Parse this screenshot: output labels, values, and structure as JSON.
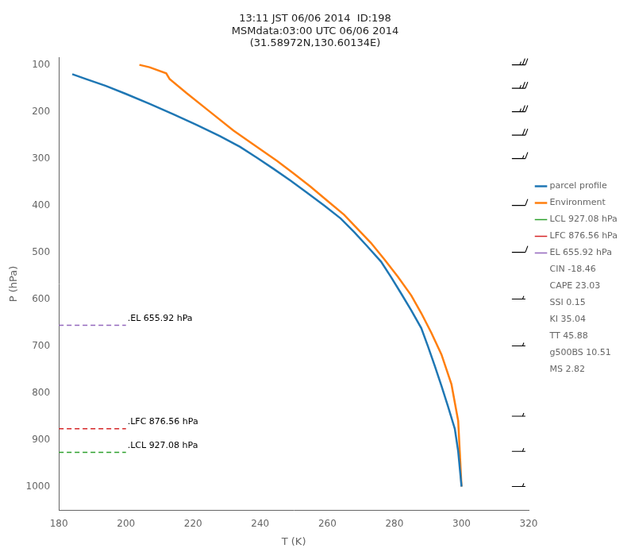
{
  "chart_data": {
    "type": "line",
    "title": [
      "13:11 JST 06/06 2014  ID:198",
      "MSMdata:03:00 UTC 06/06 2014",
      "(31.58972N,130.60134E)"
    ],
    "xlabel": "T (K)",
    "ylabel": "P (hPa)",
    "xlim": [
      180,
      320
    ],
    "ylim": [
      1050,
      85
    ],
    "xticks": [
      180,
      200,
      220,
      240,
      260,
      280,
      300,
      320
    ],
    "yticks": [
      100,
      200,
      300,
      400,
      500,
      600,
      700,
      800,
      900,
      1000
    ],
    "grid": false,
    "legend": "right",
    "series": [
      {
        "name": "parcel profile",
        "color": "#1f77b4",
        "line_style": "solid",
        "x": [
          184,
          188,
          194,
          200,
          207,
          214,
          221,
          228,
          234,
          239,
          244,
          249,
          254,
          259,
          264,
          268,
          272,
          276,
          279,
          282,
          285,
          288,
          290,
          292,
          294,
          296,
          298,
          299,
          300
        ],
        "y": [
          120,
          130,
          145,
          162,
          183,
          205,
          228,
          252,
          275,
          298,
          322,
          347,
          373,
          400,
          428,
          457,
          488,
          520,
          553,
          588,
          624,
          662,
          701,
          742,
          785,
          830,
          877,
          925,
          1000
        ]
      },
      {
        "name": "Environment",
        "color": "#ff7f0e",
        "line_style": "solid",
        "x": [
          204,
          207,
          212,
          213,
          218,
          225,
          232,
          237,
          241,
          245,
          250,
          255,
          260,
          265,
          269,
          273,
          277,
          281,
          285,
          288,
          291,
          294,
          297,
          299,
          300
        ],
        "y": [
          100,
          105,
          118,
          130,
          160,
          200,
          240,
          265,
          285,
          305,
          332,
          360,
          390,
          420,
          450,
          480,
          515,
          552,
          592,
          630,
          672,
          718,
          782,
          860,
          1000
        ]
      },
      {
        "name": "LCL 927.08 hPa",
        "color": "#2ca02c",
        "line_style": "dashed",
        "x": [
          180,
          200
        ],
        "y": [
          927.08,
          927.08
        ]
      },
      {
        "name": "LFC 876.56 hPa",
        "color": "#d62728",
        "line_style": "dashed",
        "x": [
          180,
          200
        ],
        "y": [
          876.56,
          876.56
        ]
      },
      {
        "name": "EL 655.92 hPa",
        "color": "#9467bd",
        "line_style": "dashed",
        "x": [
          180,
          200
        ],
        "y": [
          655.92,
          655.92
        ]
      }
    ],
    "legend_texts": [
      "CIN -18.46",
      "CAPE 23.03",
      "SSI 0.15",
      "KI 35.04",
      "TT 45.88",
      "g500BS 10.51",
      "MS 2.82"
    ],
    "annotations": [
      {
        "text": ".EL 655.92 hPa",
        "x": 200,
        "y": 655.92
      },
      {
        "text": ".LFC 876.56 hPa",
        "x": 200,
        "y": 876.56
      },
      {
        "text": ".LCL 927.08 hPa",
        "x": 200,
        "y": 927.08
      }
    ],
    "wind_barbs": {
      "x": [
        315,
        315,
        315,
        315,
        315,
        315,
        315,
        315,
        315,
        315,
        315,
        315
      ],
      "y": [
        100,
        150,
        200,
        250,
        300,
        400,
        500,
        600,
        700,
        850,
        925,
        1000
      ],
      "u": [
        -25,
        -25,
        -25,
        -20,
        -15,
        -10,
        -8,
        -5,
        -5,
        -5,
        -5,
        -3
      ],
      "v": [
        0,
        0,
        0,
        0,
        0,
        0,
        0,
        0,
        0,
        0,
        0,
        0
      ]
    }
  }
}
